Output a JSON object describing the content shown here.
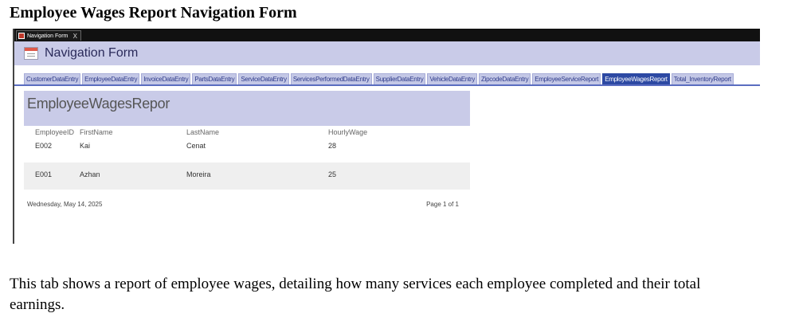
{
  "page_title": "Employee Wages Report Navigation Form",
  "window_tab": {
    "label": "Navigation Form",
    "close": "X"
  },
  "header": {
    "title": "Navigation Form"
  },
  "nav_tabs": [
    "CustomerDataEntry",
    "EmployeeDataEntry",
    "InvoiceDataEntry",
    "PartsDataEntry",
    "ServiceDataEntry",
    "ServicesPerformedDataEntry",
    "SupplierDataEntry",
    "VehicleDataEntry",
    "ZipcodeDataEntry",
    "EmployeeServiceReport",
    "EmployeeWagesReport",
    "Total_InventoryReport"
  ],
  "active_tab": "EmployeeWagesReport",
  "report": {
    "title": "EmployeeWagesRepor",
    "columns": {
      "employee_id": "EmployeeID",
      "first_name": "FirstName",
      "last_name": "LastName",
      "hourly_wage": "HourlyWage"
    },
    "rows": [
      {
        "employee_id": "E002",
        "first_name": "Kai",
        "last_name": "Cenat",
        "hourly_wage": "28"
      },
      {
        "employee_id": "E001",
        "first_name": "Azhan",
        "last_name": "Moreira",
        "hourly_wage": "25"
      }
    ],
    "footer_date": "Wednesday, May 14, 2025",
    "footer_page": "Page 1 of 1"
  },
  "caption": "This tab shows a report of employee wages, detailing how many services each employee completed and their total earnings.",
  "colors": {
    "header_bg": "#c9cbe8",
    "active_tab": "#2d49a3",
    "tab_bg": "#c4c8e6"
  }
}
